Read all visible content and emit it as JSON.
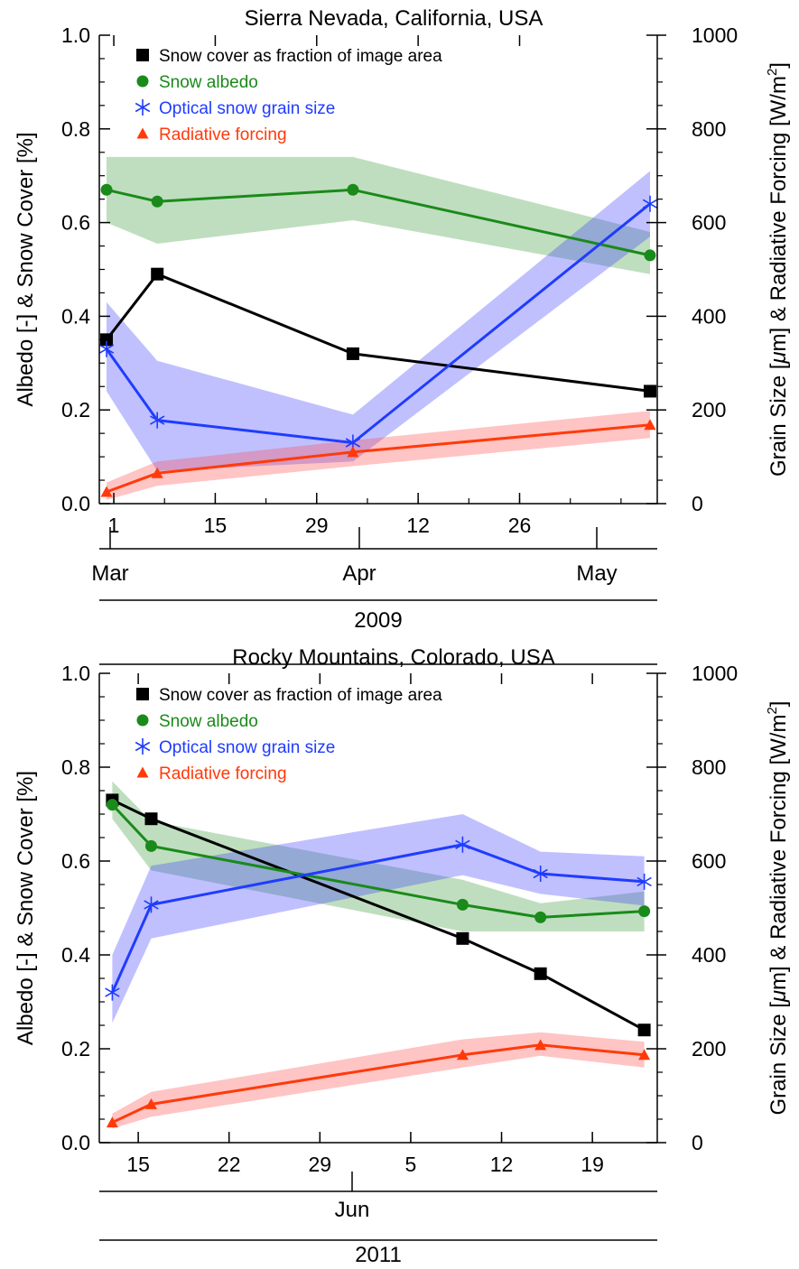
{
  "chart_data": [
    {
      "type": "line",
      "title": "Sierra Nevada, California, USA",
      "ylabel": "Albedo [-] & Snow Cover [%]",
      "y2label_parts": [
        "Grain Size [",
        "μ",
        "m] & Radiative Forcing [W/m",
        "2",
        "]"
      ],
      "ylim": [
        0,
        1.0
      ],
      "y2lim": [
        0,
        1000
      ],
      "yticks": [
        "0.0",
        "0.2",
        "0.4",
        "0.6",
        "0.8",
        "1.0"
      ],
      "y2ticks": [
        "0",
        "200",
        "400",
        "600",
        "800",
        "1000"
      ],
      "x_day_labels": [
        "1",
        "15",
        "29",
        "12",
        "26"
      ],
      "x_month_labels": [
        "Mar",
        "Apr",
        "May"
      ],
      "x_year_label": "2009",
      "legend": [
        {
          "name": "Snow cover as fraction of image area",
          "color": "#000000",
          "marker": "square"
        },
        {
          "name": "Snow albedo",
          "color": "#1a8a1a",
          "marker": "circle"
        },
        {
          "name": "Optical snow grain size",
          "color": "#1f3cff",
          "marker": "star"
        },
        {
          "name": "Radiative forcing",
          "color": "#ff3a0a",
          "marker": "triangle"
        }
      ],
      "series": [
        {
          "name": "Snow cover as fraction of image area",
          "x": [
            "2009-02-28",
            "2009-03-07",
            "2009-04-03",
            "2009-05-14"
          ],
          "y": [
            0.35,
            0.49,
            0.32,
            0.24
          ]
        },
        {
          "name": "Snow albedo",
          "x": [
            "2009-02-28",
            "2009-03-07",
            "2009-04-03",
            "2009-05-14"
          ],
          "y": [
            0.67,
            0.645,
            0.67,
            0.53
          ],
          "lower": [
            0.6,
            0.555,
            0.605,
            0.49
          ],
          "upper": [
            0.74,
            0.74,
            0.74,
            0.58
          ]
        },
        {
          "name": "Optical snow grain size",
          "x": [
            "2009-02-28",
            "2009-03-07",
            "2009-04-03",
            "2009-05-14"
          ],
          "y": [
            330,
            178,
            130,
            640
          ],
          "lower": [
            240,
            70,
            90,
            570
          ],
          "upper": [
            430,
            305,
            190,
            710
          ]
        },
        {
          "name": "Radiative forcing",
          "x": [
            "2009-02-28",
            "2009-03-07",
            "2009-04-03",
            "2009-05-14"
          ],
          "y": [
            25,
            65,
            110,
            168
          ],
          "lower": [
            8,
            38,
            80,
            140
          ],
          "upper": [
            45,
            90,
            135,
            198
          ]
        }
      ]
    },
    {
      "type": "line",
      "title": "Rocky Mountains, Colorado, USA",
      "ylabel": "Albedo [-] & Snow Cover [%]",
      "y2label_parts": [
        "Grain Size [",
        "μ",
        "m] & Radiative Forcing [W/m",
        "2",
        "]"
      ],
      "ylim": [
        0,
        1.0
      ],
      "y2lim": [
        0,
        1000
      ],
      "yticks": [
        "0.0",
        "0.2",
        "0.4",
        "0.6",
        "0.8",
        "1.0"
      ],
      "y2ticks": [
        "0",
        "200",
        "400",
        "600",
        "800",
        "1000"
      ],
      "x_day_labels": [
        "15",
        "22",
        "29",
        "5",
        "12",
        "19"
      ],
      "x_month_labels": [
        "Jun"
      ],
      "x_year_label": "2011",
      "legend": [
        {
          "name": "Snow cover as fraction of image area",
          "color": "#000000",
          "marker": "square"
        },
        {
          "name": "Snow albedo",
          "color": "#1a8a1a",
          "marker": "circle"
        },
        {
          "name": "Optical snow grain size",
          "color": "#1f3cff",
          "marker": "star"
        },
        {
          "name": "Radiative forcing",
          "color": "#ff3a0a",
          "marker": "triangle"
        }
      ],
      "series": [
        {
          "name": "Snow cover as fraction of image area",
          "x": [
            "2011-05-13",
            "2011-05-16",
            "2011-06-09",
            "2011-06-15",
            "2011-06-23"
          ],
          "y": [
            0.73,
            0.69,
            0.435,
            0.36,
            0.24
          ]
        },
        {
          "name": "Snow albedo",
          "x": [
            "2011-05-13",
            "2011-05-16",
            "2011-06-09",
            "2011-06-15",
            "2011-06-23"
          ],
          "y": [
            0.72,
            0.632,
            0.507,
            0.48,
            0.493
          ],
          "lower": [
            0.69,
            0.58,
            0.45,
            0.45,
            0.45
          ],
          "upper": [
            0.77,
            0.685,
            0.56,
            0.51,
            0.535
          ]
        },
        {
          "name": "Optical snow grain size",
          "x": [
            "2011-05-13",
            "2011-05-16",
            "2011-06-09",
            "2011-06-15",
            "2011-06-23"
          ],
          "y": [
            320,
            507,
            635,
            573,
            556
          ],
          "lower": [
            255,
            435,
            570,
            530,
            505
          ],
          "upper": [
            400,
            590,
            700,
            620,
            610
          ]
        },
        {
          "name": "Radiative forcing",
          "x": [
            "2011-05-13",
            "2011-05-16",
            "2011-06-09",
            "2011-06-15",
            "2011-06-23"
          ],
          "y": [
            43,
            82,
            187,
            208,
            187
          ],
          "lower": [
            30,
            55,
            160,
            185,
            160
          ],
          "upper": [
            62,
            108,
            220,
            235,
            215
          ]
        }
      ]
    }
  ]
}
